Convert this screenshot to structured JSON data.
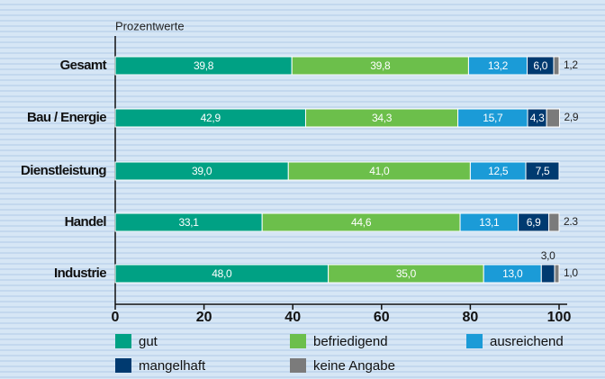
{
  "chart_data": {
    "type": "stacked_bar_horizontal",
    "axis_label": "Prozentwerte",
    "categories": [
      "Gesamt",
      "Bau / Energie",
      "Dienstleistung",
      "Handel",
      "Industrie"
    ],
    "series": [
      {
        "name": "gut",
        "color": "#00a184",
        "values": [
          39.8,
          42.9,
          39.0,
          33.1,
          48.0
        ],
        "value_labels": [
          "39,8",
          "42,9",
          "39,0",
          "33,1",
          "48,0"
        ]
      },
      {
        "name": "befriedigend",
        "color": "#6cbf4b",
        "values": [
          39.8,
          34.3,
          41.0,
          44.6,
          35.0
        ],
        "value_labels": [
          "39,8",
          "34,3",
          "41,0",
          "44,6",
          "35,0"
        ]
      },
      {
        "name": "ausreichend",
        "color": "#1b9bd7",
        "values": [
          13.2,
          15.7,
          12.5,
          13.1,
          13.0
        ],
        "value_labels": [
          "13,2",
          "15,7",
          "12,5",
          "13,1",
          "13,0"
        ]
      },
      {
        "name": "mangelhaft",
        "color": "#003a70",
        "values": [
          6.0,
          4.3,
          7.5,
          6.9,
          3.0
        ],
        "value_labels": [
          "6,0",
          "4,3",
          "7,5",
          "6,9",
          "3,0"
        ]
      },
      {
        "name": "keine Angabe",
        "color": "#7b7b7b",
        "values": [
          1.2,
          2.9,
          null,
          2.3,
          1.0
        ],
        "value_labels": [
          "1,2",
          "2,9",
          null,
          "2.3",
          "1,0"
        ]
      }
    ],
    "xlim": [
      0,
      100
    ],
    "xticks": [
      0,
      20,
      40,
      60,
      80,
      100
    ]
  }
}
